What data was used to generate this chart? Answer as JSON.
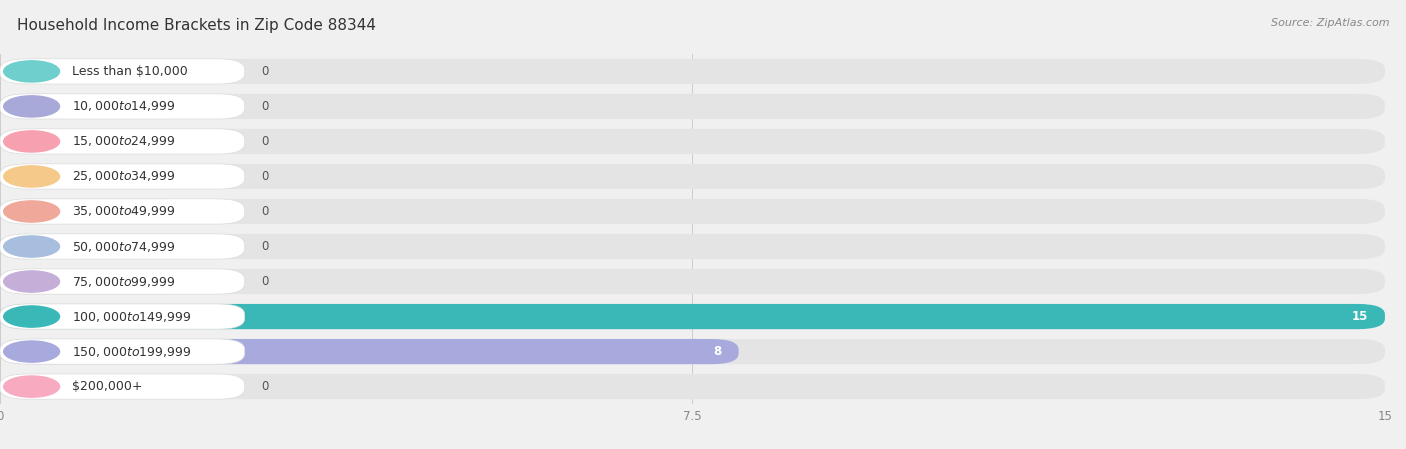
{
  "title": "Household Income Brackets in Zip Code 88344",
  "source": "Source: ZipAtlas.com",
  "categories": [
    "Less than $10,000",
    "$10,000 to $14,999",
    "$15,000 to $24,999",
    "$25,000 to $34,999",
    "$35,000 to $49,999",
    "$50,000 to $74,999",
    "$75,000 to $99,999",
    "$100,000 to $149,999",
    "$150,000 to $199,999",
    "$200,000+"
  ],
  "values": [
    0,
    0,
    0,
    0,
    0,
    0,
    0,
    15,
    8,
    0
  ],
  "bar_colors": [
    "#6ecfcc",
    "#a9a9d9",
    "#f7a0b0",
    "#f5c98a",
    "#f0a89a",
    "#a8bede",
    "#c5aed8",
    "#3ab8b8",
    "#a8aadd",
    "#f7aac0"
  ],
  "bar_light_colors": [
    "#c8eeec",
    "#dcdcf2",
    "#fcd5dc",
    "#fde8c8",
    "#fad5ce",
    "#d5e5f5",
    "#e5d8f0",
    "#3ab8b8",
    "#a8aadd",
    "#fcdce8"
  ],
  "label_bg_color": "#ffffff",
  "xlim": [
    0,
    15
  ],
  "xticks": [
    0,
    7.5,
    15
  ],
  "background_color": "#f0f0f0",
  "row_bg_color": "#e8e8e8",
  "title_fontsize": 11,
  "label_fontsize": 9,
  "value_fontsize": 8.5,
  "source_fontsize": 8
}
